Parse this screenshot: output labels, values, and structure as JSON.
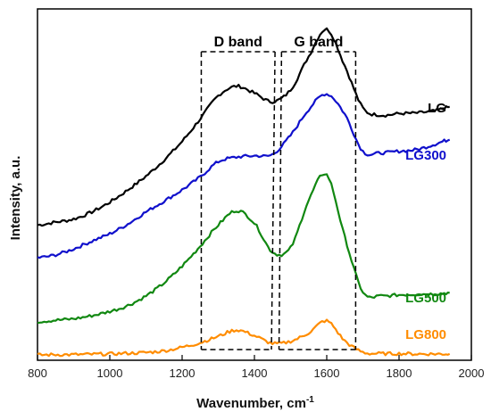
{
  "chart_data": {
    "type": "line",
    "title": "",
    "xlabel": "Wavenumber, cm",
    "xlabel_superscript": "-1",
    "ylabel": "Intensity, a.u.",
    "xlim": [
      800,
      2000
    ],
    "ylim": [
      0,
      100
    ],
    "x_ticks": [
      "800",
      "1000",
      "1200",
      "1400",
      "1600",
      "1800",
      "2000"
    ],
    "y_ticks_labeled": false,
    "grid": false,
    "legend": "inline labels at right end of each curve",
    "x": [
      800,
      850,
      900,
      950,
      1000,
      1050,
      1100,
      1150,
      1200,
      1250,
      1300,
      1350,
      1400,
      1450,
      1500,
      1550,
      1600,
      1650,
      1700,
      1750,
      1800,
      1850,
      1900,
      1940
    ],
    "series": [
      {
        "name": "LG",
        "color": "#000000",
        "values": [
          38.5,
          39.3,
          40.2,
          42.2,
          45.0,
          48.5,
          52.4,
          57.0,
          62.3,
          68.7,
          75.3,
          78.0,
          76.0,
          73.6,
          77.0,
          86.5,
          94.2,
          83.8,
          71.8,
          69.8,
          70.2,
          70.4,
          71.0,
          72.1
        ]
      },
      {
        "name": "LG300",
        "color": "#1010cc",
        "values": [
          29.2,
          30.0,
          31.7,
          33.9,
          36.0,
          38.8,
          42.2,
          45.3,
          48.5,
          52.2,
          56.5,
          57.8,
          58.2,
          58.6,
          64.0,
          71.4,
          75.8,
          70.0,
          59.5,
          59.0,
          59.5,
          60.0,
          61.5,
          62.8
        ]
      },
      {
        "name": "LG500",
        "color": "#118811",
        "values": [
          11.0,
          11.4,
          11.8,
          12.7,
          13.9,
          15.6,
          18.3,
          22.0,
          26.8,
          32.5,
          38.5,
          42.6,
          39.0,
          30.8,
          32.0,
          45.5,
          52.8,
          35.0,
          19.4,
          18.3,
          18.6,
          18.8,
          18.9,
          19.2
        ]
      },
      {
        "name": "LG800",
        "color": "#ff8c00",
        "values": [
          1.5,
          1.6,
          1.6,
          1.7,
          1.8,
          2.0,
          2.2,
          2.7,
          3.7,
          5.0,
          6.8,
          8.6,
          7.0,
          4.8,
          5.4,
          7.8,
          11.2,
          5.5,
          2.3,
          1.9,
          1.9,
          1.8,
          1.8,
          1.8
        ]
      }
    ],
    "annotations": [
      {
        "label": "D band",
        "x_range": [
          1253,
          1457
        ],
        "style": "dashed box"
      },
      {
        "label": "G band",
        "x_range": [
          1475,
          1680
        ],
        "style": "dashed box"
      }
    ]
  }
}
